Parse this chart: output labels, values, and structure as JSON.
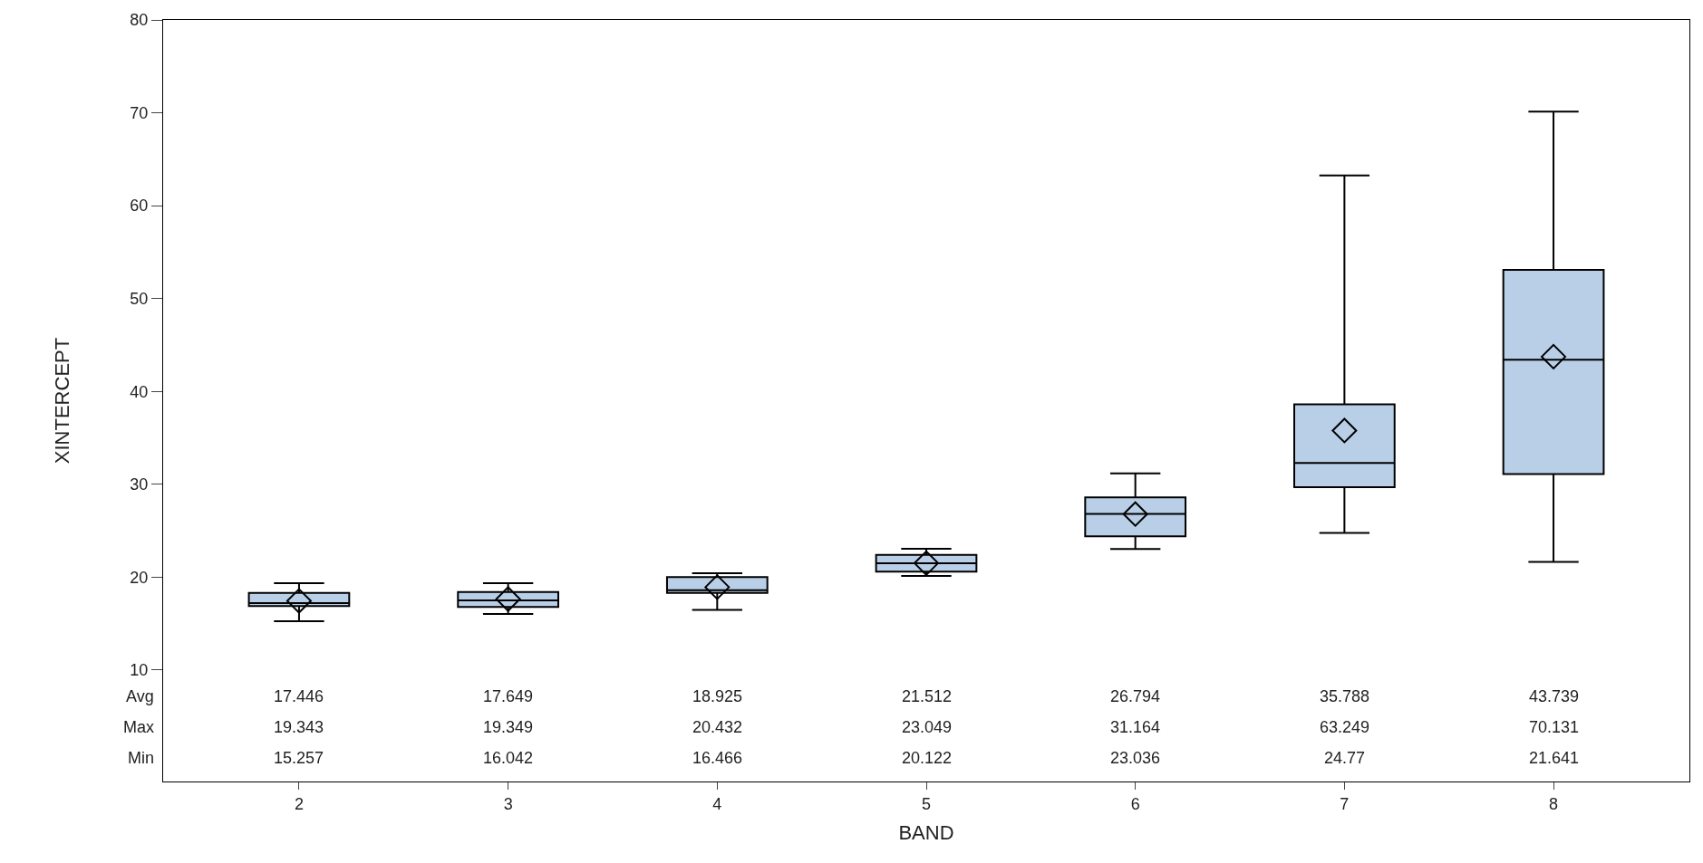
{
  "chart_data": {
    "type": "box",
    "xlabel": "BAND",
    "ylabel": "XINTERCEPT",
    "categories": [
      "2",
      "3",
      "4",
      "5",
      "6",
      "7",
      "8"
    ],
    "color": "#b9cfe7",
    "marker": "diamond",
    "ylim": [
      -2,
      80
    ],
    "yticks": [
      10,
      20,
      30,
      40,
      50,
      60,
      70,
      80
    ],
    "boxes": [
      {
        "low": 15.257,
        "q1": 16.9,
        "median": 17.2,
        "q3": 18.3,
        "high": 19.343,
        "mean": 17.446
      },
      {
        "low": 16.042,
        "q1": 16.8,
        "median": 17.5,
        "q3": 18.4,
        "high": 19.349,
        "mean": 17.649
      },
      {
        "low": 16.466,
        "q1": 18.3,
        "median": 18.6,
        "q3": 20.0,
        "high": 20.432,
        "mean": 18.925
      },
      {
        "low": 20.122,
        "q1": 20.6,
        "median": 21.5,
        "q3": 22.4,
        "high": 23.049,
        "mean": 21.512
      },
      {
        "low": 23.036,
        "q1": 24.4,
        "median": 26.8,
        "q3": 28.6,
        "high": 31.164,
        "mean": 26.794
      },
      {
        "low": 24.77,
        "q1": 29.7,
        "median": 32.3,
        "q3": 38.6,
        "high": 63.249,
        "mean": 35.788
      },
      {
        "low": 21.641,
        "q1": 31.1,
        "median": 43.4,
        "q3": 53.1,
        "high": 70.131,
        "mean": 43.739
      }
    ],
    "annotations": [
      "Avg",
      "17.446",
      "17.649",
      "18.925",
      "21.512",
      "26.794",
      "35.788",
      "43.739",
      "Max",
      "19.343",
      "19.349",
      "20.432",
      "23.049",
      "31.164",
      "63.249",
      "70.131",
      "Min",
      "15.257",
      "16.042",
      "16.466",
      "20.122",
      "23.036",
      "24.77",
      "21.641"
    ]
  }
}
